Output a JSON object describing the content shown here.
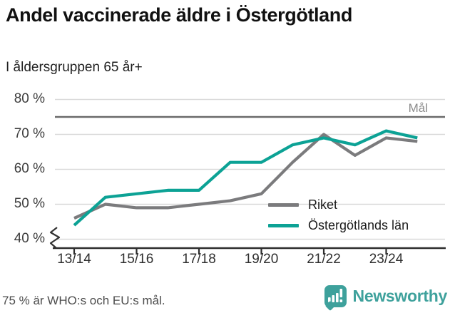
{
  "title": "Andel vaccinerade äldre i Östergötland",
  "subtitle": "I åldersgruppen 65 år+",
  "footer_note": "75 % är WHO:s och EU:s mål.",
  "brand": {
    "name": "Newsworthy",
    "color": "#3ea19c",
    "icon": "bar-chart-speech-bubble-icon"
  },
  "chart_data": {
    "type": "line",
    "x": [
      "13/14",
      "14/15",
      "15/16",
      "16/17",
      "17/18",
      "18/19",
      "19/20",
      "20/21",
      "21/22",
      "22/23",
      "23/24",
      "24/25"
    ],
    "x_tick_labels": [
      "13/14",
      "15/16",
      "17/18",
      "19/20",
      "21/22",
      "23/24"
    ],
    "series": [
      {
        "name": "Riket",
        "color": "#7b7b7d",
        "values": [
          46,
          50,
          49,
          49,
          50,
          51,
          53,
          62,
          70,
          64,
          69,
          68
        ]
      },
      {
        "name": "Östergötlands län",
        "color": "#0ca295",
        "values": [
          44,
          52,
          53,
          54,
          54,
          62,
          62,
          67,
          69,
          67,
          71,
          69
        ]
      }
    ],
    "y_ticks": [
      40,
      50,
      60,
      70,
      80
    ],
    "y_tick_suffix": " %",
    "ylim": [
      40,
      80
    ],
    "unit": "%",
    "axis_break": true,
    "goal_line": {
      "value": 75,
      "label": "Mål"
    },
    "grid": "horizontal",
    "legend_position": "inside-bottom-right"
  }
}
